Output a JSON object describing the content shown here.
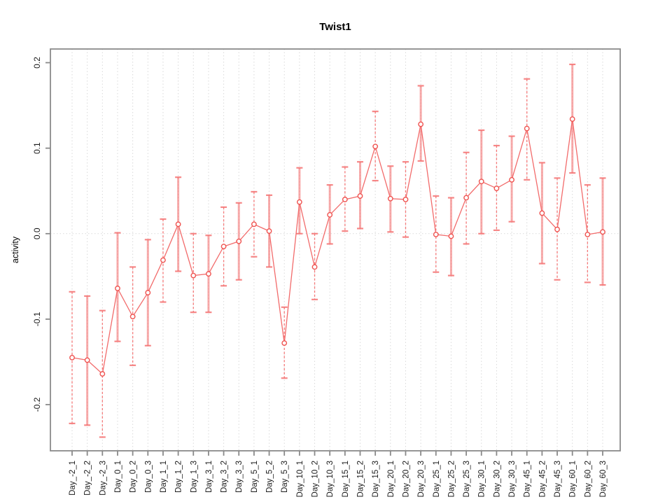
{
  "colors": {
    "point_stroke": "#ef5350",
    "series_line": "#f26b6b",
    "error_bar": "#f57373",
    "grid": "#d9d9d9",
    "axis_box": "#8a8a8a",
    "tick_text": "#1a1a1a"
  },
  "chart_data": {
    "type": "line",
    "title": "Twist1",
    "xlabel": "",
    "ylabel": "activity",
    "legend": "none",
    "grid": "vertical dotted gridline at every category; dotted horizontal line at y=0",
    "error_bars": true,
    "yticks": [
      -0.2,
      -0.1,
      0.0,
      0.1,
      0.2
    ],
    "ytick_labels": [
      "-0.2",
      "-0.1",
      "0.0",
      "0.1",
      "0.2"
    ],
    "ylim": [
      -0.254,
      0.216
    ],
    "categories": [
      "Day_-2_1",
      "Day_-2_2",
      "Day_-2_3",
      "Day_0_1",
      "Day_0_2",
      "Day_0_3",
      "Day_1_1",
      "Day_1_2",
      "Day_1_3",
      "Day_3_1",
      "Day_3_2",
      "Day_3_3",
      "Day_5_1",
      "Day_5_2",
      "Day_5_3",
      "Day_10_1",
      "Day_10_2",
      "Day_10_3",
      "Day_15_1",
      "Day_15_2",
      "Day_15_3",
      "Day_20_1",
      "Day_20_2",
      "Day_20_3",
      "Day_25_1",
      "Day_25_2",
      "Day_25_3",
      "Day_30_1",
      "Day_30_2",
      "Day_30_3",
      "Day_45_1",
      "Day_45_2",
      "Day_45_3",
      "Day_60_1",
      "Day_60_2",
      "Day_60_3"
    ],
    "series": [
      {
        "name": "activity",
        "values": [
          -0.145,
          -0.148,
          -0.164,
          -0.064,
          -0.097,
          -0.069,
          -0.031,
          0.011,
          -0.049,
          -0.047,
          -0.015,
          -0.009,
          0.011,
          0.003,
          -0.128,
          0.037,
          -0.039,
          0.022,
          0.04,
          0.044,
          0.102,
          0.041,
          0.04,
          0.128,
          -0.001,
          -0.003,
          0.042,
          0.061,
          0.053,
          0.063,
          0.123,
          0.024,
          0.005,
          0.134,
          -0.001,
          0.002
        ],
        "err_low": [
          -0.222,
          -0.224,
          -0.238,
          -0.126,
          -0.154,
          -0.131,
          -0.08,
          -0.044,
          -0.092,
          -0.092,
          -0.061,
          -0.054,
          -0.027,
          -0.039,
          -0.169,
          0.0,
          -0.077,
          -0.012,
          0.003,
          0.006,
          0.062,
          0.002,
          -0.004,
          0.085,
          -0.045,
          -0.049,
          -0.012,
          0.0,
          0.004,
          0.014,
          0.063,
          -0.035,
          -0.054,
          0.071,
          -0.057,
          -0.06
        ],
        "err_high": [
          -0.068,
          -0.073,
          -0.09,
          0.001,
          -0.039,
          -0.007,
          0.017,
          0.066,
          0.0,
          -0.002,
          0.031,
          0.036,
          0.049,
          0.045,
          -0.086,
          0.077,
          0.0,
          0.057,
          0.078,
          0.084,
          0.143,
          0.079,
          0.084,
          0.173,
          0.044,
          0.042,
          0.095,
          0.121,
          0.103,
          0.114,
          0.181,
          0.083,
          0.065,
          0.198,
          0.057,
          0.065
        ]
      }
    ]
  }
}
